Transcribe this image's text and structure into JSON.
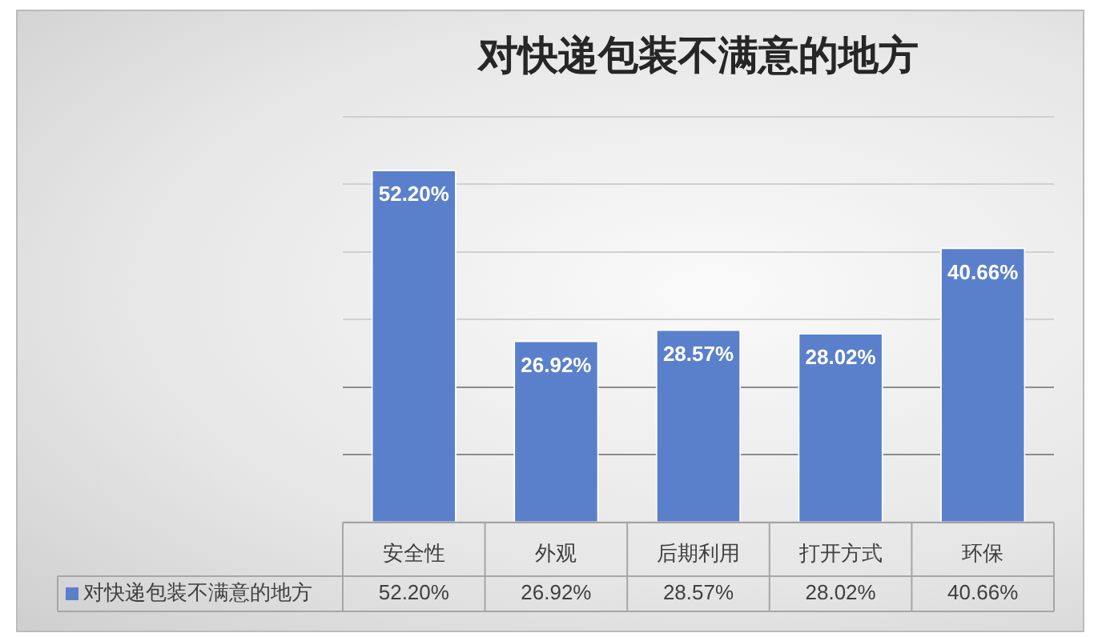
{
  "chart_data": {
    "type": "bar",
    "title": "对快递包装不满意的地方",
    "categories": [
      "安全性",
      "外观",
      "后期利用",
      "打开方式",
      "环保"
    ],
    "series": [
      {
        "name": "对快递包装不满意的地方",
        "color": "#5b80cb",
        "values": [
          52.2,
          26.92,
          28.57,
          28.02,
          40.66
        ],
        "value_labels": [
          "52.20%",
          "26.92%",
          "28.57%",
          "28.02%",
          "40.66%"
        ]
      }
    ],
    "ylim": [
      0,
      60
    ],
    "yticks": [
      {
        "value": 0,
        "label": null
      },
      {
        "value": 10,
        "label": null
      },
      {
        "value": 20,
        "label": null
      },
      {
        "value": 30,
        "label": null
      },
      {
        "value": 40,
        "label": null
      },
      {
        "value": 50,
        "label": null
      },
      {
        "value": 60,
        "label": null
      }
    ],
    "tick_labels": "x",
    "grid": "y",
    "legend": "bottom"
  }
}
